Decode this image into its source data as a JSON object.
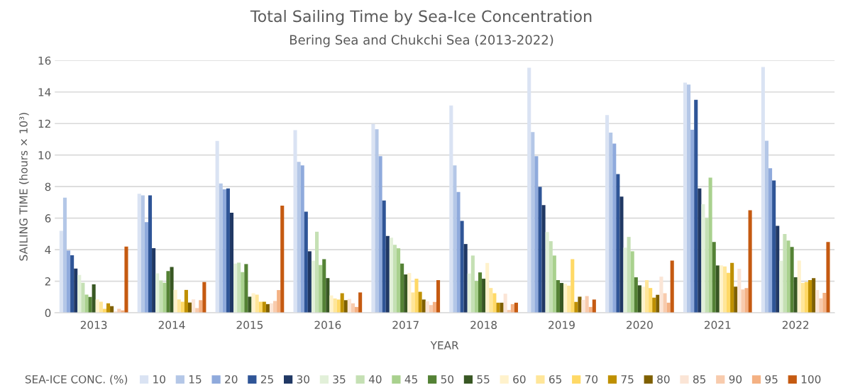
{
  "chart_data": {
    "type": "bar",
    "title": "Total Sailing Time by Sea-Ice Concentration",
    "subtitle": "Bering Sea and Chukchi Sea (2013-2022)",
    "xlabel": "YEAR",
    "ylabel": "SAILING TIME (hours × 10³)",
    "legend_title": "SEA-ICE CONC. (%)",
    "legend": "bottom",
    "grid": "y",
    "ylim": [
      0,
      16
    ],
    "yticks": [
      0,
      2,
      4,
      6,
      8,
      10,
      12,
      14,
      16
    ],
    "categories": [
      "2013",
      "2014",
      "2015",
      "2016",
      "2017",
      "2018",
      "2019",
      "2020",
      "2021",
      "2022"
    ],
    "series": [
      {
        "name": "10",
        "color": "#dae3f3",
        "values": [
          5.2,
          7.55,
          10.9,
          11.58,
          11.98,
          13.14,
          15.54,
          12.54,
          14.59,
          15.58
        ]
      },
      {
        "name": "15",
        "color": "#b4c7e7",
        "values": [
          7.3,
          7.45,
          8.2,
          9.57,
          11.64,
          9.35,
          11.46,
          11.42,
          14.47,
          10.91
        ]
      },
      {
        "name": "20",
        "color": "#8faadc",
        "values": [
          3.95,
          5.75,
          7.83,
          9.35,
          9.93,
          7.66,
          9.93,
          10.73,
          11.6,
          9.17
        ]
      },
      {
        "name": "25",
        "color": "#2f5597",
        "values": [
          3.65,
          7.45,
          7.88,
          6.41,
          7.12,
          5.83,
          7.99,
          8.79,
          13.51,
          8.39
        ]
      },
      {
        "name": "30",
        "color": "#203864",
        "values": [
          2.8,
          4.1,
          6.34,
          3.9,
          4.87,
          4.36,
          6.83,
          7.37,
          7.88,
          5.51
        ]
      },
      {
        "name": "35",
        "color": "#e2f0d9",
        "values": [
          2.4,
          2.5,
          3.12,
          3.3,
          4.76,
          2.49,
          5.12,
          4.13,
          6.88,
          3.3
        ]
      },
      {
        "name": "40",
        "color": "#c5e0b4",
        "values": [
          1.9,
          2.05,
          3.18,
          5.14,
          4.31,
          3.63,
          4.54,
          4.81,
          6.02,
          4.99
        ]
      },
      {
        "name": "45",
        "color": "#a9d18e",
        "values": [
          1.15,
          1.9,
          2.58,
          3.03,
          4.09,
          2.02,
          3.63,
          3.9,
          8.57,
          4.58
        ]
      },
      {
        "name": "50",
        "color": "#548235",
        "values": [
          1.0,
          2.65,
          3.09,
          3.4,
          3.12,
          2.56,
          2.07,
          2.25,
          4.49,
          4.18
        ]
      },
      {
        "name": "55",
        "color": "#385723",
        "values": [
          1.8,
          2.9,
          1.02,
          2.2,
          2.43,
          2.16,
          1.89,
          1.74,
          3.0,
          2.25
        ]
      },
      {
        "name": "60",
        "color": "#fff2cc",
        "values": [
          0.85,
          1.45,
          1.24,
          1.1,
          2.52,
          3.16,
          1.84,
          1.65,
          3.01,
          3.31
        ]
      },
      {
        "name": "65",
        "color": "#ffe699",
        "values": [
          0.7,
          0.85,
          1.15,
          0.91,
          1.29,
          1.57,
          1.72,
          2.07,
          2.94,
          1.89
        ]
      },
      {
        "name": "70",
        "color": "#ffd966",
        "values": [
          0.25,
          0.7,
          0.7,
          0.84,
          2.16,
          1.24,
          3.4,
          1.57,
          2.53,
          1.95
        ]
      },
      {
        "name": "75",
        "color": "#bf9000",
        "values": [
          0.6,
          1.45,
          0.7,
          1.24,
          1.33,
          0.64,
          0.69,
          0.96,
          3.16,
          2.07
        ]
      },
      {
        "name": "80",
        "color": "#7f6000",
        "values": [
          0.42,
          0.65,
          0.55,
          0.8,
          0.84,
          0.64,
          1.02,
          1.14,
          1.66,
          2.2
        ]
      },
      {
        "name": "85",
        "color": "#fbe5d6",
        "values": [
          0.1,
          0.85,
          0.6,
          0.88,
          0.73,
          1.21,
          0.82,
          2.29,
          2.79,
          1.44
        ]
      },
      {
        "name": "90",
        "color": "#f8cbad",
        "values": [
          0.25,
          0.3,
          0.75,
          0.6,
          0.49,
          0.18,
          1.06,
          1.24,
          1.48,
          0.91
        ]
      },
      {
        "name": "95",
        "color": "#f4b183",
        "values": [
          0.15,
          0.8,
          1.44,
          0.37,
          0.69,
          0.55,
          0.37,
          0.64,
          1.57,
          1.26
        ]
      },
      {
        "name": "100",
        "color": "#c55a11",
        "values": [
          4.2,
          1.95,
          6.79,
          1.29,
          2.07,
          0.64,
          0.84,
          3.31,
          6.5,
          4.49
        ]
      }
    ]
  }
}
